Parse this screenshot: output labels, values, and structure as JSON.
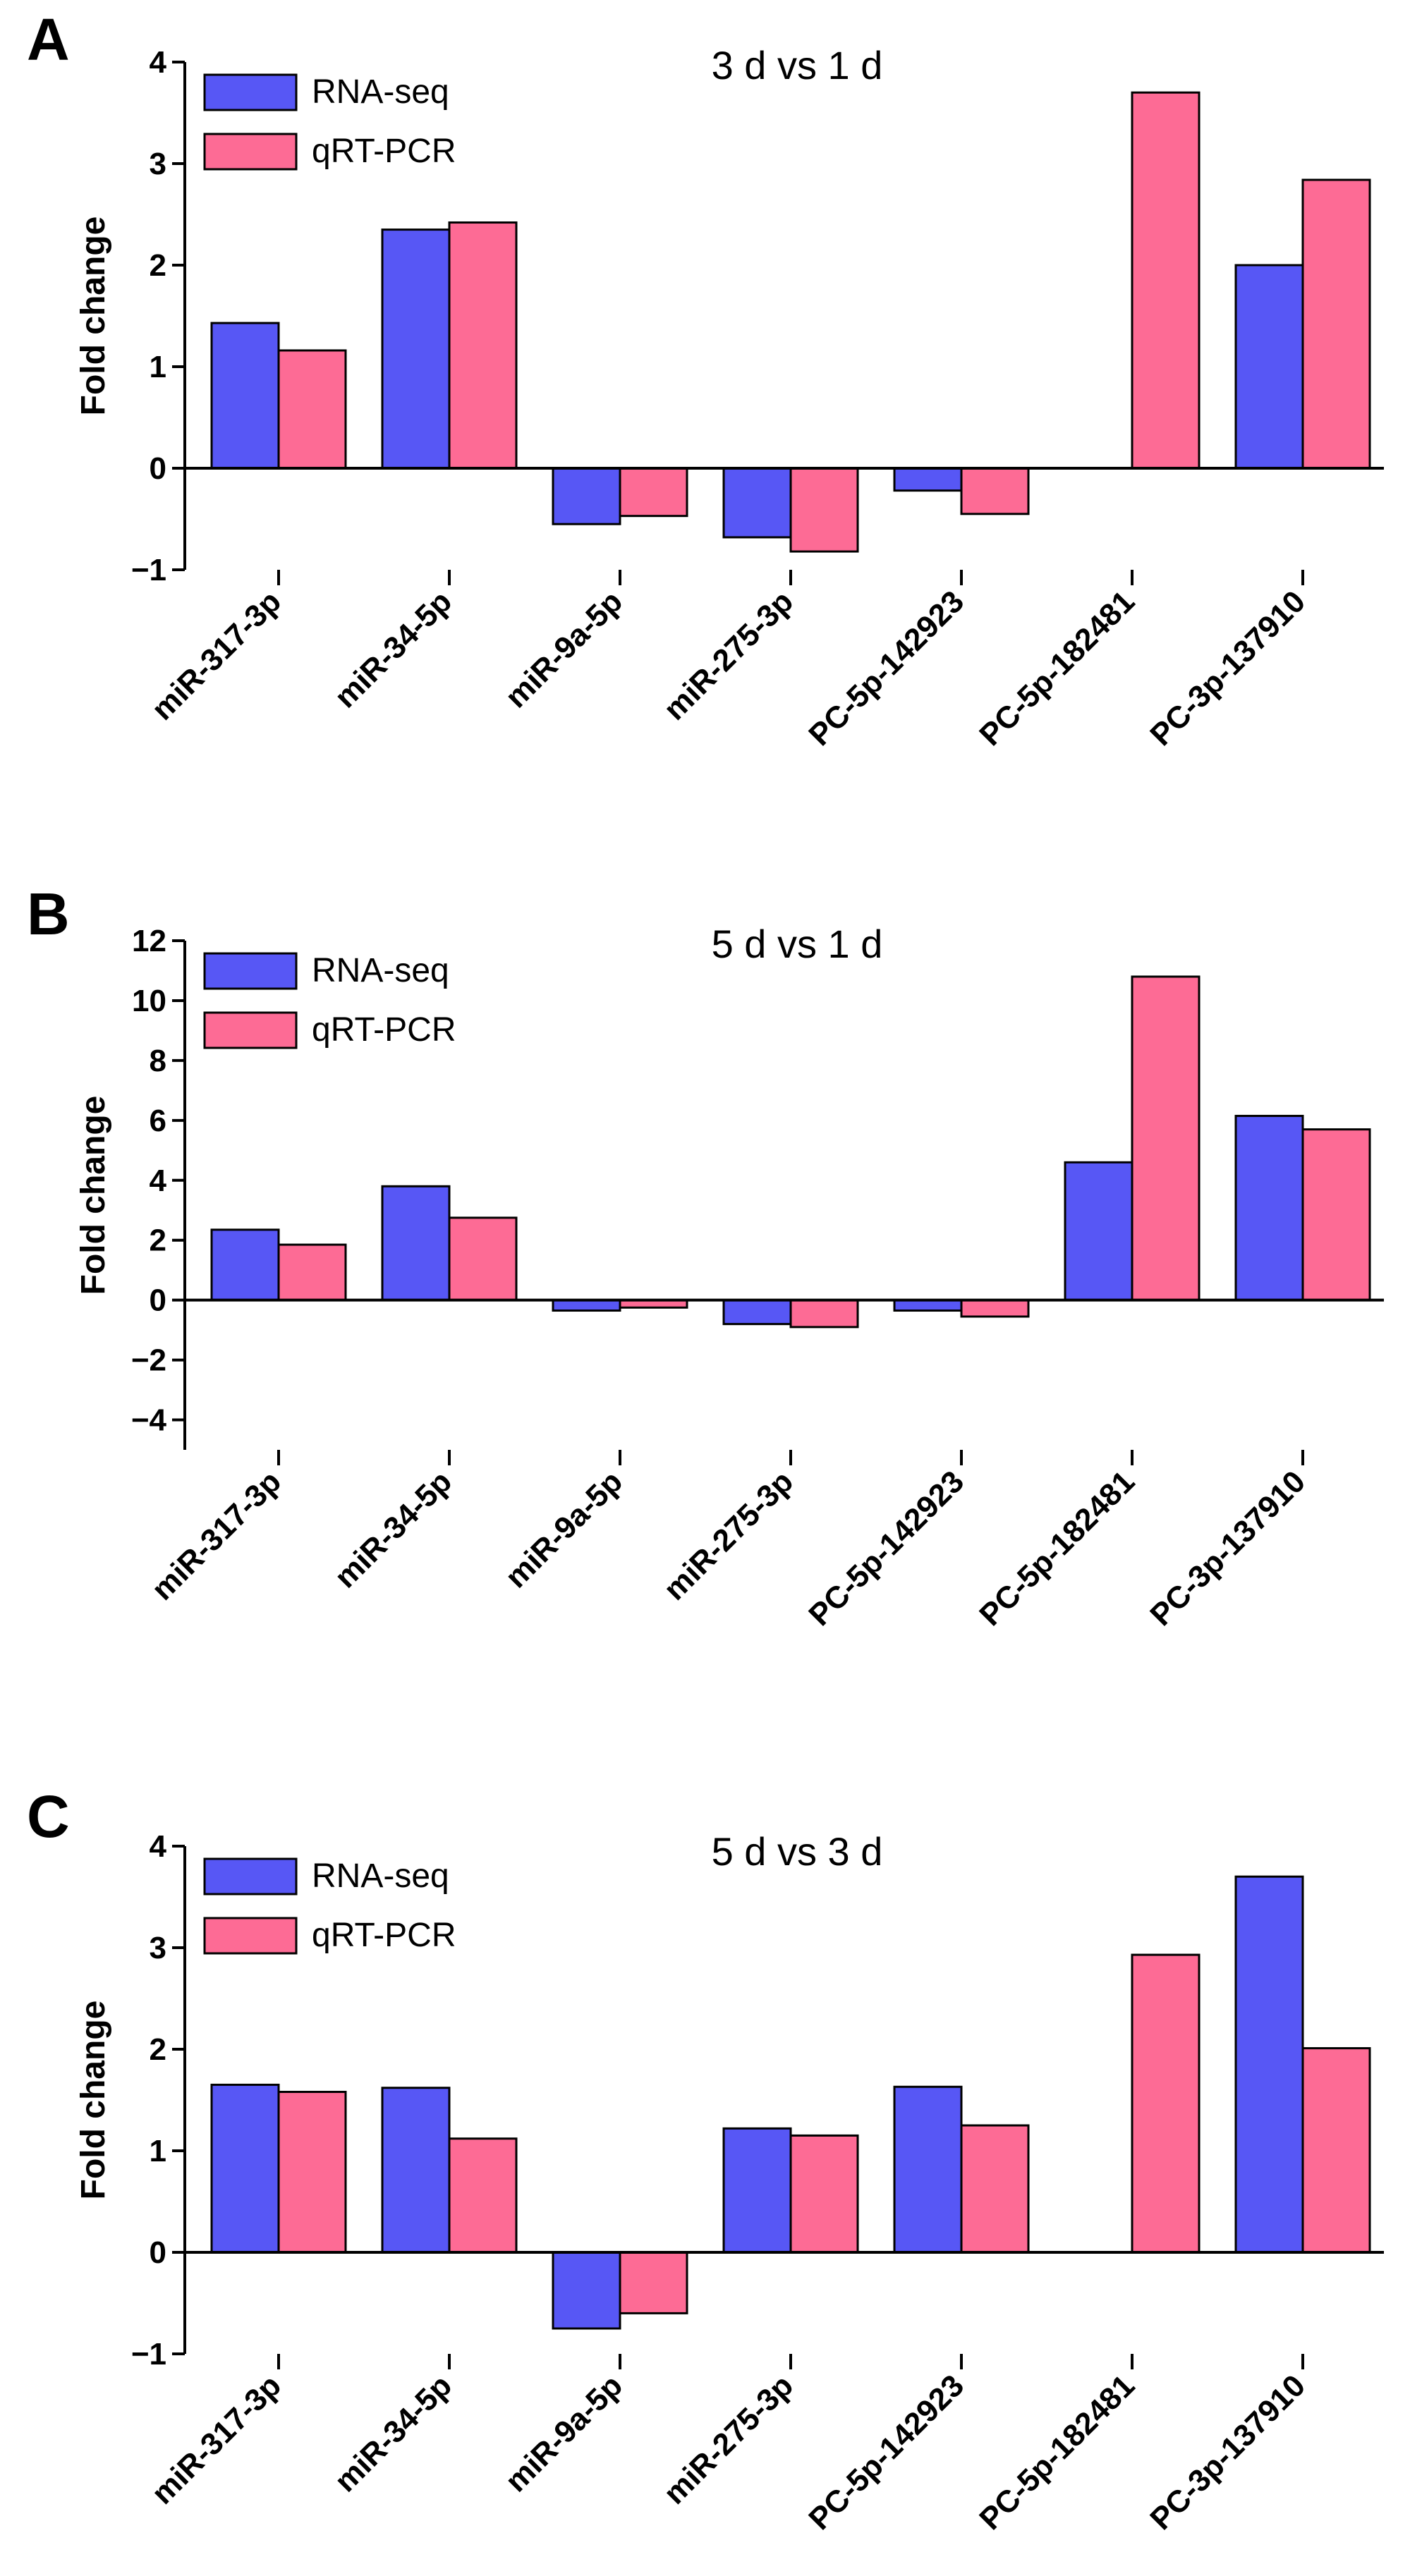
{
  "colors": {
    "rna": "#5757f5",
    "qpcr": "#fd6b95",
    "stroke": "#000000"
  },
  "chart_data": [
    {
      "type": "bar",
      "panel": "A",
      "title": "3 d vs 1 d",
      "ylabel": "Fold change",
      "xlabel": "",
      "ylim": [
        -1,
        4
      ],
      "yticks": [
        -1,
        0,
        1,
        2,
        3,
        4
      ],
      "ytick_labels": [
        "−1",
        "0",
        "1",
        "2",
        "3",
        "4"
      ],
      "categories": [
        "miR-317-3p",
        "miR-34-5p",
        "miR-9a-5p",
        "miR-275-3p",
        "PC-5p-142923",
        "PC-5p-182481",
        "PC-3p-137910"
      ],
      "series": [
        {
          "name": "RNA-seq",
          "values": [
            1.43,
            2.35,
            -0.55,
            -0.68,
            -0.22,
            0,
            2.0
          ]
        },
        {
          "name": "qRT-PCR",
          "values": [
            1.16,
            2.42,
            -0.47,
            -0.82,
            -0.45,
            3.7,
            2.84
          ]
        }
      ],
      "legend": "top-left"
    },
    {
      "type": "bar",
      "panel": "B",
      "title": "5 d vs 1 d",
      "ylabel": "Fold change",
      "xlabel": "",
      "ylim": [
        -5,
        12
      ],
      "yticks": [
        -4,
        -2,
        0,
        2,
        4,
        6,
        8,
        10,
        12
      ],
      "ytick_labels": [
        "−4",
        "−2",
        "0",
        "2",
        "4",
        "6",
        "8",
        "10",
        "12"
      ],
      "categories": [
        "miR-317-3p",
        "miR-34-5p",
        "miR-9a-5p",
        "miR-275-3p",
        "PC-5p-142923",
        "PC-5p-182481",
        "PC-3p-137910"
      ],
      "series": [
        {
          "name": "RNA-seq",
          "values": [
            2.35,
            3.8,
            -0.35,
            -0.8,
            -0.35,
            4.6,
            6.15
          ]
        },
        {
          "name": "qRT-PCR",
          "values": [
            1.85,
            2.75,
            -0.25,
            -0.9,
            -0.55,
            10.8,
            5.7
          ]
        }
      ],
      "legend": "top-left"
    },
    {
      "type": "bar",
      "panel": "C",
      "title": "5 d vs 3 d",
      "ylabel": "Fold change",
      "xlabel": "",
      "ylim": [
        -1,
        4
      ],
      "yticks": [
        -1,
        0,
        1,
        2,
        3,
        4
      ],
      "ytick_labels": [
        "−1",
        "0",
        "1",
        "2",
        "3",
        "4"
      ],
      "categories": [
        "miR-317-3p",
        "miR-34-5p",
        "miR-9a-5p",
        "miR-275-3p",
        "PC-5p-142923",
        "PC-5p-182481",
        "PC-3p-137910"
      ],
      "series": [
        {
          "name": "RNA-seq",
          "values": [
            1.65,
            1.62,
            -0.75,
            1.22,
            1.63,
            0,
            3.7
          ]
        },
        {
          "name": "qRT-PCR",
          "values": [
            1.58,
            1.12,
            -0.6,
            1.15,
            1.25,
            2.93,
            2.01
          ]
        }
      ],
      "legend": "top-left"
    }
  ]
}
